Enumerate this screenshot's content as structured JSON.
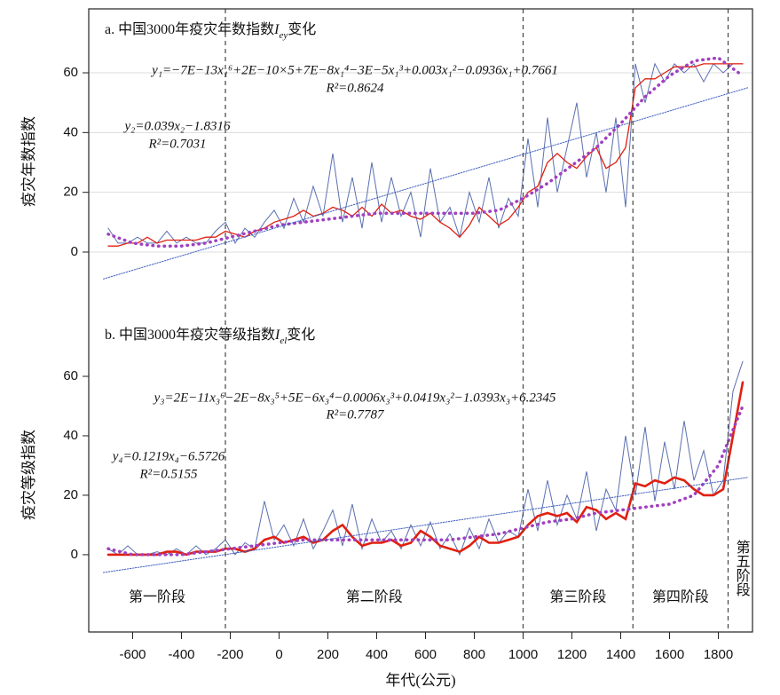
{
  "chart_data": [
    {
      "type": "line",
      "title": [
        "a. 中国3000年疫灾年数指数",
        "I",
        "ey",
        "变化"
      ],
      "ylabel": "疫灾年数指数",
      "annotations": [
        "y₁=−7E−13x₁⁶+2E−10×5+7E−8x₁⁴−3E−5x₁³+0.003x₁²−0.0936x₁+0.7661",
        "R²=0.8624",
        "y₂=0.039x₂−1.8316",
        "R²=0.7031"
      ],
      "xlim": [
        -780,
        1940
      ],
      "ylim": [
        -21.1,
        81.4
      ],
      "yticks": [
        0,
        20,
        40,
        60
      ],
      "grid": true,
      "x": [
        -700,
        -660,
        -620,
        -580,
        -540,
        -500,
        -460,
        -420,
        -380,
        -340,
        -300,
        -260,
        -220,
        -180,
        -140,
        -100,
        -60,
        -20,
        20,
        60,
        100,
        140,
        180,
        220,
        260,
        300,
        340,
        380,
        420,
        460,
        500,
        540,
        580,
        620,
        660,
        700,
        740,
        780,
        820,
        860,
        900,
        940,
        980,
        1020,
        1060,
        1100,
        1140,
        1180,
        1220,
        1260,
        1300,
        1340,
        1380,
        1420,
        1460,
        1500,
        1540,
        1580,
        1620,
        1660,
        1700,
        1740,
        1780,
        1820,
        1860,
        1900
      ],
      "series": [
        {
          "color": "#5a6fb0",
          "style": "solid",
          "values": [
            8,
            3,
            3,
            5,
            3,
            3,
            7,
            3,
            5,
            3,
            3,
            7,
            10,
            3,
            8,
            5,
            10,
            14,
            8,
            18,
            10,
            22,
            12,
            33,
            10,
            25,
            8,
            30,
            10,
            25,
            12,
            20,
            5,
            28,
            10,
            15,
            5,
            20,
            10,
            25,
            8,
            18,
            12,
            38,
            15,
            45,
            20,
            35,
            50,
            25,
            40,
            20,
            45,
            15,
            63,
            50,
            63,
            57,
            63,
            60,
            63,
            57,
            63,
            60,
            63,
            63
          ]
        },
        {
          "color": "#e02010",
          "style": "solid",
          "values": [
            2,
            2,
            3,
            3,
            5,
            3,
            4,
            4,
            4,
            4,
            5,
            5,
            7,
            6,
            5,
            7,
            8,
            10,
            11,
            12,
            14,
            12,
            13,
            15,
            14,
            12,
            15,
            12,
            16,
            13,
            14,
            12,
            11,
            13,
            10,
            8,
            5,
            9,
            15,
            12,
            9,
            11,
            15,
            20,
            22,
            30,
            33,
            30,
            28,
            32,
            35,
            28,
            30,
            35,
            55,
            58,
            58,
            60,
            62,
            62,
            62,
            63,
            63,
            63,
            63,
            63
          ]
        },
        {
          "color": "#a040c0",
          "style": "dotted",
          "x": [
            -700,
            -600,
            -500,
            -400,
            -300,
            -200,
            -100,
            0,
            100,
            200,
            300,
            400,
            500,
            600,
            700,
            800,
            900,
            1000,
            1100,
            1200,
            1300,
            1400,
            1500,
            1600,
            1700,
            1800,
            1900
          ],
          "values": [
            6,
            3,
            2,
            2,
            3,
            5,
            7,
            9,
            10,
            11,
            12,
            13,
            13,
            13,
            13,
            13,
            14,
            18,
            23,
            29,
            35,
            43,
            52,
            59,
            64,
            65,
            59
          ]
        },
        {
          "color": "#4060c0",
          "style": "thin",
          "x": [
            -720,
            1920
          ],
          "values": [
            -9,
            55
          ]
        }
      ]
    },
    {
      "type": "line",
      "title": [
        "b. 中国3000年疫灾等级指数",
        "I",
        "el",
        "变化"
      ],
      "ylabel": "疫灾等级指数",
      "xlabel": "年代(公元)",
      "annotations": [
        "y₃=2E−11x₃⁶−2E−8x₃⁵+5E−6x₃⁴−0.0006x₃³+0.0419x₃²−1.0393x₃+6.2345",
        "R²=0.7787",
        "y₄=0.1219x₄−6.5726",
        "R²=0.5155"
      ],
      "xlim": [
        -780,
        1940
      ],
      "ylim": [
        -26,
        80.6
      ],
      "yticks": [
        0,
        20,
        40,
        60
      ],
      "xticks": [
        -600,
        -400,
        -200,
        0,
        200,
        400,
        600,
        800,
        1000,
        1200,
        1400,
        1600,
        1800
      ],
      "stage_boundaries": [
        -220,
        1000,
        1450,
        1840
      ],
      "stage_labels": [
        "第一阶段",
        "第二阶段",
        "第三阶段",
        "第四阶段",
        "第五阶段"
      ],
      "x": [
        -700,
        -660,
        -620,
        -580,
        -540,
        -500,
        -460,
        -420,
        -380,
        -340,
        -300,
        -260,
        -220,
        -180,
        -140,
        -100,
        -60,
        -20,
        20,
        60,
        100,
        140,
        180,
        220,
        260,
        300,
        340,
        380,
        420,
        460,
        500,
        540,
        580,
        620,
        660,
        700,
        740,
        780,
        820,
        860,
        900,
        940,
        980,
        1020,
        1060,
        1100,
        1140,
        1180,
        1220,
        1260,
        1300,
        1340,
        1380,
        1420,
        1460,
        1500,
        1540,
        1580,
        1620,
        1660,
        1700,
        1740,
        1780,
        1820,
        1860,
        1900
      ],
      "series": [
        {
          "color": "#5a6fb0",
          "style": "solid",
          "values": [
            2,
            0,
            3,
            0,
            0,
            1,
            0,
            2,
            0,
            3,
            0,
            2,
            5,
            0,
            4,
            2,
            18,
            5,
            10,
            3,
            12,
            2,
            8,
            15,
            3,
            17,
            2,
            12,
            4,
            8,
            2,
            10,
            3,
            11,
            2,
            7,
            0,
            9,
            2,
            12,
            4,
            8,
            6,
            22,
            8,
            25,
            10,
            20,
            12,
            28,
            8,
            22,
            15,
            40,
            20,
            43,
            18,
            38,
            22,
            45,
            25,
            35,
            20,
            25,
            55,
            65
          ]
        },
        {
          "color": "#e02010",
          "style": "bold",
          "values": [
            0,
            0,
            0,
            0,
            0,
            0,
            1,
            1,
            0,
            1,
            1,
            1,
            2,
            2,
            1,
            2,
            5,
            6,
            4,
            5,
            6,
            4,
            5,
            8,
            10,
            6,
            3,
            4,
            4,
            5,
            3,
            4,
            8,
            6,
            3,
            2,
            1,
            3,
            6,
            4,
            4,
            5,
            6,
            10,
            13,
            14,
            13,
            14,
            11,
            16,
            15,
            12,
            14,
            12,
            24,
            23,
            25,
            24,
            26,
            25,
            22,
            20,
            20,
            22,
            40,
            58
          ]
        },
        {
          "color": "#a040c0",
          "style": "dotted",
          "x": [
            -700,
            -600,
            -500,
            -400,
            -300,
            -200,
            -100,
            0,
            100,
            200,
            300,
            400,
            500,
            600,
            700,
            800,
            900,
            1000,
            1100,
            1200,
            1300,
            1400,
            1500,
            1600,
            1700,
            1800,
            1900
          ],
          "values": [
            2,
            0,
            0,
            0,
            1,
            2,
            3,
            4,
            5,
            5,
            5,
            5,
            5,
            5,
            5,
            6,
            7,
            9,
            11,
            12,
            14,
            15,
            16,
            17,
            20,
            30,
            50
          ]
        },
        {
          "color": "#4060c0",
          "style": "thin",
          "x": [
            -720,
            1920
          ],
          "values": [
            -6,
            26
          ]
        }
      ]
    }
  ]
}
